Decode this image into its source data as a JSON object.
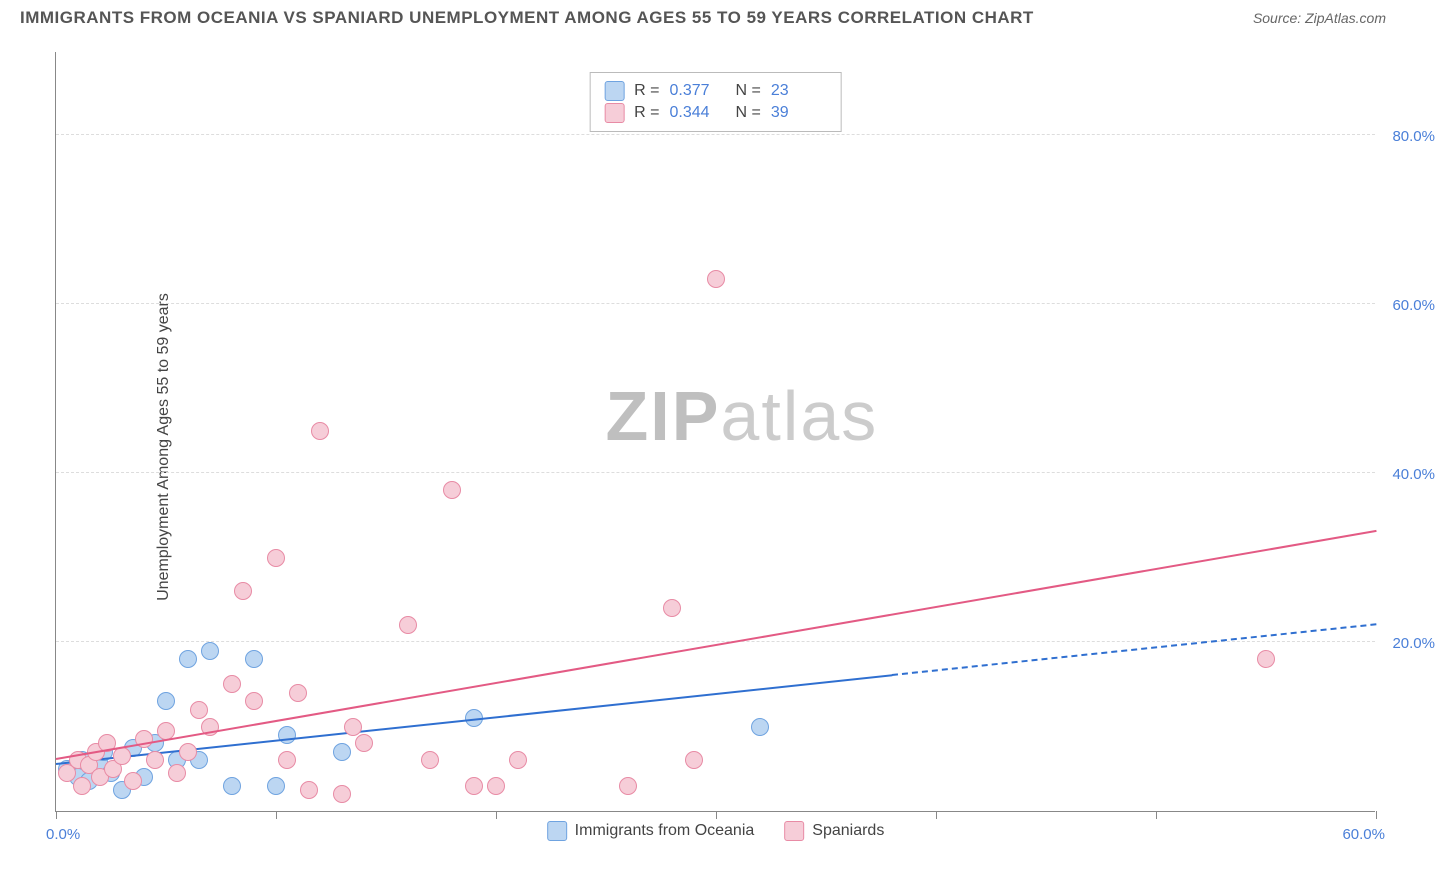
{
  "title": "IMMIGRANTS FROM OCEANIA VS SPANIARD UNEMPLOYMENT AMONG AGES 55 TO 59 YEARS CORRELATION CHART",
  "source_label": "Source: ",
  "source_value": "ZipAtlas.com",
  "ylabel": "Unemployment Among Ages 55 to 59 years",
  "watermark_part1": "ZIP",
  "watermark_part2": "atlas",
  "chart": {
    "type": "scatter",
    "background_color": "#ffffff",
    "grid_color": "#dddddd",
    "axis_color": "#888888",
    "xlim": [
      0,
      60
    ],
    "ylim": [
      0,
      90
    ],
    "xtick_positions": [
      0,
      10,
      20,
      30,
      40,
      50,
      60
    ],
    "xtick_labels_shown": {
      "0": "0.0%",
      "60": "60.0%"
    },
    "ytick_positions": [
      20,
      40,
      60,
      80
    ],
    "ytick_labels": {
      "20": "20.0%",
      "40": "40.0%",
      "60": "60.0%",
      "80": "80.0%"
    },
    "axis_label_color": "#4a7fd8",
    "axis_label_fontsize": 15,
    "marker_radius": 9,
    "marker_stroke_width": 1,
    "series": [
      {
        "id": "oceania",
        "label": "Immigrants from Oceania",
        "fill": "#bcd6f2",
        "stroke": "#6fa3e0",
        "R": "0.377",
        "N": "23",
        "trend": {
          "x1": 0,
          "y1": 5.5,
          "x2": 38,
          "y2": 16,
          "dash_to_x": 60,
          "dash_to_y": 22,
          "color": "#2f6fd0"
        },
        "points": [
          [
            0.5,
            5
          ],
          [
            1,
            4
          ],
          [
            1.2,
            6
          ],
          [
            1.5,
            3.5
          ],
          [
            2,
            5.5
          ],
          [
            2.2,
            7
          ],
          [
            2.5,
            4.5
          ],
          [
            3,
            2.5
          ],
          [
            3.5,
            7.5
          ],
          [
            4,
            4
          ],
          [
            4.5,
            8
          ],
          [
            5,
            13
          ],
          [
            6,
            18
          ],
          [
            6.5,
            6
          ],
          [
            7,
            19
          ],
          [
            8,
            3
          ],
          [
            9,
            18
          ],
          [
            10,
            3
          ],
          [
            10.5,
            9
          ],
          [
            13,
            7
          ],
          [
            19,
            11
          ],
          [
            32,
            10
          ],
          [
            5.5,
            6
          ]
        ]
      },
      {
        "id": "spaniards",
        "label": "Spaniards",
        "fill": "#f6cdd8",
        "stroke": "#e88ba5",
        "R": "0.344",
        "N": "39",
        "trend": {
          "x1": 0,
          "y1": 6,
          "x2": 60,
          "y2": 33,
          "color": "#e35a84"
        },
        "points": [
          [
            0.5,
            4.5
          ],
          [
            1,
            6
          ],
          [
            1.2,
            3
          ],
          [
            1.5,
            5.5
          ],
          [
            1.8,
            7
          ],
          [
            2,
            4
          ],
          [
            2.3,
            8
          ],
          [
            2.6,
            5
          ],
          [
            3,
            6.5
          ],
          [
            3.5,
            3.5
          ],
          [
            4,
            8.5
          ],
          [
            4.5,
            6
          ],
          [
            5,
            9.5
          ],
          [
            5.5,
            4.5
          ],
          [
            6,
            7
          ],
          [
            6.5,
            12
          ],
          [
            7,
            10
          ],
          [
            8,
            15
          ],
          [
            8.5,
            26
          ],
          [
            9,
            13
          ],
          [
            10,
            30
          ],
          [
            10.5,
            6
          ],
          [
            11,
            14
          ],
          [
            11.5,
            2.5
          ],
          [
            12,
            45
          ],
          [
            13,
            2
          ],
          [
            13.5,
            10
          ],
          [
            14,
            8
          ],
          [
            16,
            22
          ],
          [
            17,
            6
          ],
          [
            18,
            38
          ],
          [
            19,
            3
          ],
          [
            20,
            3
          ],
          [
            21,
            6
          ],
          [
            26,
            3
          ],
          [
            28,
            24
          ],
          [
            29,
            6
          ],
          [
            30,
            63
          ],
          [
            55,
            18
          ]
        ]
      }
    ]
  },
  "stats_box": {
    "r_label": "R  =",
    "n_label": "N  ="
  }
}
